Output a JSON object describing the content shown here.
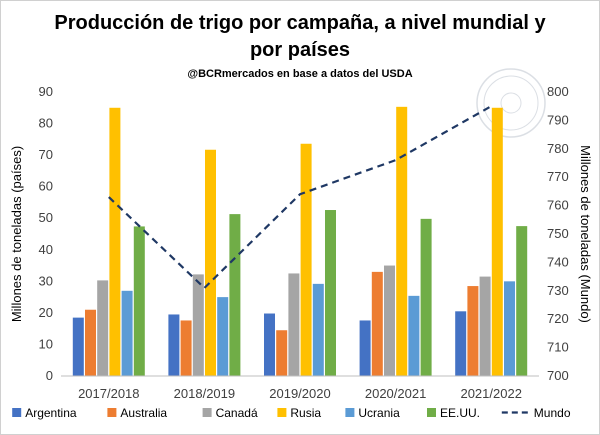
{
  "chart_data": {
    "type": "bar",
    "title_line1": "Producción de trigo por campaña, a nivel mundial y",
    "title_line2": "por países",
    "subtitle": "@BCRmercados  en base a datos del USDA",
    "ylabel": "Millones de toneladas (países)",
    "y2label": "Millones de toneladas (Mundo)",
    "ylim": [
      0,
      90
    ],
    "y2lim": [
      700,
      800
    ],
    "yticks": [
      "0",
      "10",
      "20",
      "30",
      "40",
      "50",
      "60",
      "70",
      "80",
      "90"
    ],
    "y2ticks": [
      "700",
      "710",
      "720",
      "730",
      "740",
      "750",
      "760",
      "770",
      "780",
      "790",
      "800"
    ],
    "categories": [
      "2017/2018",
      "2018/2019",
      "2019/2020",
      "2020/2021",
      "2021/2022"
    ],
    "series": [
      {
        "name": "Argentina",
        "color": "#4472c4",
        "values": [
          18.5,
          19.5,
          19.8,
          17.6,
          20.5
        ]
      },
      {
        "name": "Australia",
        "color": "#ed7d31",
        "values": [
          21.0,
          17.6,
          14.5,
          33.0,
          28.5
        ]
      },
      {
        "name": "Canadá",
        "color": "#a5a5a5",
        "values": [
          30.3,
          32.2,
          32.5,
          35.0,
          31.5
        ]
      },
      {
        "name": "Rusia",
        "color": "#ffc000",
        "values": [
          85.0,
          71.7,
          73.6,
          85.3,
          85.0
        ]
      },
      {
        "name": "Ucrania",
        "color": "#5b9bd5",
        "values": [
          27.0,
          25.0,
          29.2,
          25.4,
          30.0
        ]
      },
      {
        "name": "EE.UU.",
        "color": "#70ad47",
        "values": [
          47.4,
          51.3,
          52.6,
          49.8,
          47.5
        ]
      }
    ],
    "line_series": {
      "name": "Mundo",
      "color": "#1f3864",
      "axis": "secondary",
      "values": [
        763,
        731,
        764,
        776,
        795
      ]
    },
    "grid": false,
    "legend_position": "bottom"
  }
}
